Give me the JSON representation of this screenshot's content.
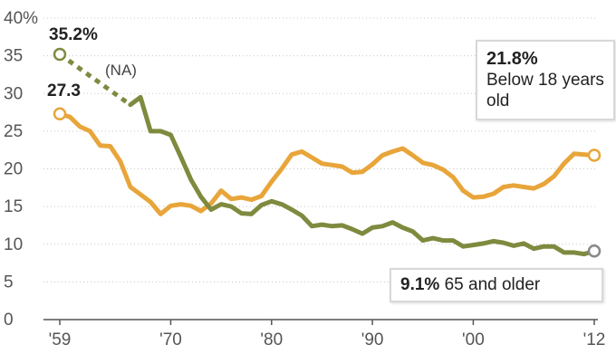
{
  "chart_data": {
    "type": "line",
    "title": "",
    "xlabel": "",
    "ylabel": "",
    "ylim": [
      0,
      40
    ],
    "xlim": [
      1959,
      2012
    ],
    "y_ticks": [
      0,
      5,
      10,
      15,
      20,
      25,
      30,
      35,
      40
    ],
    "y_tick_labels": [
      "0",
      "5",
      "10",
      "15",
      "20",
      "25",
      "30",
      "35",
      "40%"
    ],
    "x_ticks": [
      1959,
      1970,
      1980,
      1990,
      2000,
      2012
    ],
    "x_tick_labels": [
      "'59",
      "'70",
      "'80",
      "'90",
      "'00",
      "'12"
    ],
    "grid": "horizontal dotted",
    "series": [
      {
        "key": "below18",
        "color": "#e8a53a",
        "x": [
          1959,
          1960,
          1961,
          1962,
          1963,
          1964,
          1965,
          1966,
          1967,
          1968,
          1969,
          1970,
          1971,
          1972,
          1973,
          1974,
          1975,
          1976,
          1977,
          1978,
          1979,
          1980,
          1981,
          1982,
          1983,
          1984,
          1985,
          1986,
          1987,
          1988,
          1989,
          1990,
          1991,
          1992,
          1993,
          1994,
          1995,
          1996,
          1997,
          1998,
          1999,
          2000,
          2001,
          2002,
          2003,
          2004,
          2005,
          2006,
          2007,
          2008,
          2009,
          2010,
          2011,
          2012
        ],
        "values": [
          27.3,
          26.9,
          25.6,
          25.0,
          23.1,
          23.0,
          21.0,
          17.6,
          16.6,
          15.6,
          14.0,
          15.1,
          15.3,
          15.1,
          14.4,
          15.4,
          17.1,
          16.0,
          16.2,
          15.9,
          16.4,
          18.3,
          20.0,
          21.9,
          22.3,
          21.5,
          20.7,
          20.5,
          20.3,
          19.5,
          19.6,
          20.6,
          21.8,
          22.3,
          22.7,
          21.8,
          20.8,
          20.5,
          19.9,
          18.9,
          17.1,
          16.2,
          16.3,
          16.7,
          17.6,
          17.8,
          17.6,
          17.4,
          18.0,
          19.0,
          20.7,
          22.0,
          21.9,
          21.8
        ]
      },
      {
        "key": "older65",
        "color": "#7f8a3f",
        "x": [
          1966,
          1967,
          1968,
          1969,
          1970,
          1971,
          1972,
          1973,
          1974,
          1975,
          1976,
          1977,
          1978,
          1979,
          1980,
          1981,
          1982,
          1983,
          1984,
          1985,
          1986,
          1987,
          1988,
          1989,
          1990,
          1991,
          1992,
          1993,
          1994,
          1995,
          1996,
          1997,
          1998,
          1999,
          2000,
          2001,
          2002,
          2003,
          2004,
          2005,
          2006,
          2007,
          2008,
          2009,
          2010,
          2011,
          2012
        ],
        "values": [
          28.5,
          29.5,
          25.0,
          25.0,
          24.5,
          21.6,
          18.6,
          16.3,
          14.6,
          15.3,
          15.0,
          14.1,
          14.0,
          15.2,
          15.7,
          15.3,
          14.6,
          13.8,
          12.4,
          12.6,
          12.4,
          12.5,
          12.0,
          11.4,
          12.2,
          12.4,
          12.9,
          12.2,
          11.7,
          10.5,
          10.8,
          10.5,
          10.5,
          9.7,
          9.9,
          10.1,
          10.4,
          10.2,
          9.8,
          10.1,
          9.4,
          9.7,
          9.7,
          8.9,
          8.9,
          8.7,
          9.1
        ]
      }
    ],
    "na_segment": {
      "x": [
        1959,
        1966
      ],
      "values": [
        35.2,
        28.5
      ],
      "label": "(NA)"
    },
    "annotations": {
      "older65_1959": "35.2%",
      "below18_1959": "27.3",
      "below18_2012_value": "21.8%",
      "below18_2012_label": "Below 18 years old",
      "older65_2012_value": "9.1%",
      "older65_2012_label": "65 and older"
    }
  }
}
